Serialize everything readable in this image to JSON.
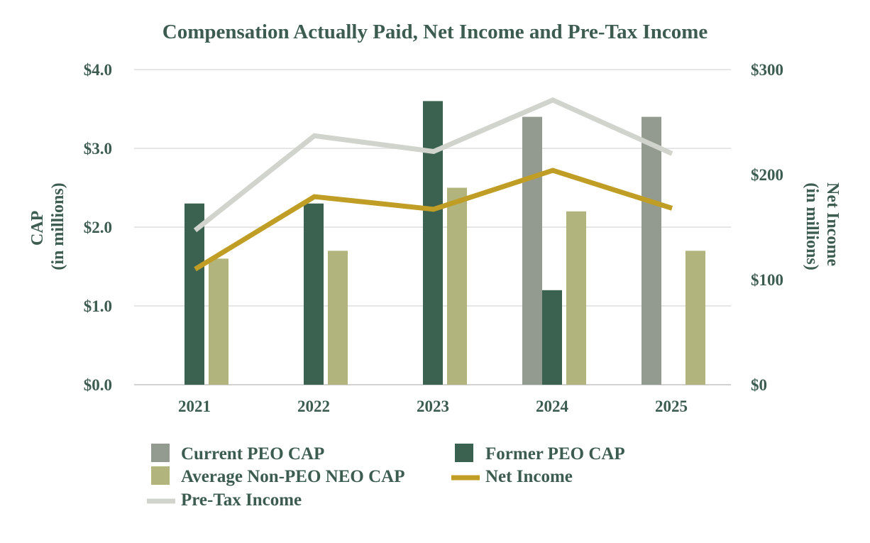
{
  "chart_data": {
    "type": "bar",
    "title": "Compensation Actually Paid, Net Income and Pre-Tax Income",
    "categories": [
      "2021",
      "2022",
      "2023",
      "2024",
      "2025"
    ],
    "ylabel": [
      "CAP",
      "(in millions)"
    ],
    "y2label": [
      "Net Income",
      "(in millions)"
    ],
    "ylim": [
      0,
      4
    ],
    "y2lim": [
      0,
      300
    ],
    "yticks": [
      0,
      1,
      2,
      3,
      4
    ],
    "yticklabels": [
      "$0.0",
      "$1.0",
      "$2.0",
      "$3.0",
      "$4.0"
    ],
    "y2ticks": [
      0,
      100,
      200,
      300
    ],
    "y2ticklabels": [
      "$0",
      "$100",
      "$200",
      "$300"
    ],
    "grid": true,
    "legend_position": "bottom-left",
    "series": [
      {
        "name": "Current PEO CAP",
        "kind": "bar",
        "axis": "left",
        "color": "#939b90",
        "values": [
          null,
          null,
          null,
          3.4,
          3.4
        ]
      },
      {
        "name": "Former PEO CAP",
        "kind": "bar",
        "axis": "left",
        "color": "#3b6150",
        "values": [
          2.3,
          2.3,
          3.6,
          1.2,
          null
        ]
      },
      {
        "name": "Average Non-PEO NEO CAP",
        "kind": "bar",
        "axis": "left",
        "color": "#b1b47c",
        "values": [
          1.6,
          1.7,
          2.5,
          2.2,
          1.7
        ]
      },
      {
        "name": "Net Income",
        "kind": "line",
        "axis": "right",
        "color": "#c09e26",
        "values": [
          110,
          179,
          167,
          204,
          168
        ]
      },
      {
        "name": "Pre-Tax Income",
        "kind": "line",
        "axis": "right",
        "color": "#d0d4cc",
        "values": [
          147,
          237,
          222,
          271,
          220
        ]
      }
    ]
  }
}
